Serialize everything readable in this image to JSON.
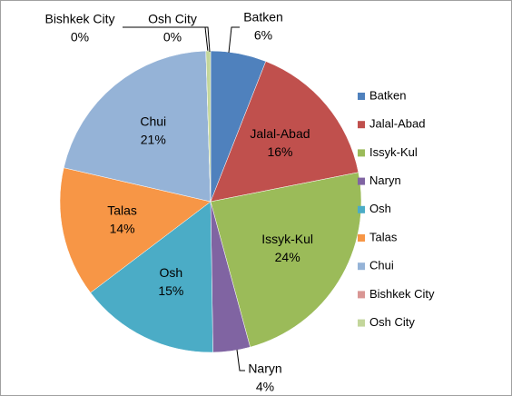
{
  "chart_data": {
    "type": "pie",
    "categories": [
      "Batken",
      "Jalal-Abad",
      "Issyk-Kul",
      "Naryn",
      "Osh",
      "Talas",
      "Chui",
      "Bishkek City",
      "Osh City"
    ],
    "values": [
      6,
      16,
      24,
      4,
      15,
      14,
      21,
      0,
      0.5
    ],
    "value_labels": [
      "6%",
      "16%",
      "24%",
      "4%",
      "15%",
      "14%",
      "21%",
      "0%",
      "0%"
    ],
    "colors": [
      "#4f81bd",
      "#c0504d",
      "#9bbb59",
      "#8064a2",
      "#4bacc6",
      "#f79646",
      "#95b3d7",
      "#d99694",
      "#c3d69b"
    ],
    "legend": "right"
  }
}
